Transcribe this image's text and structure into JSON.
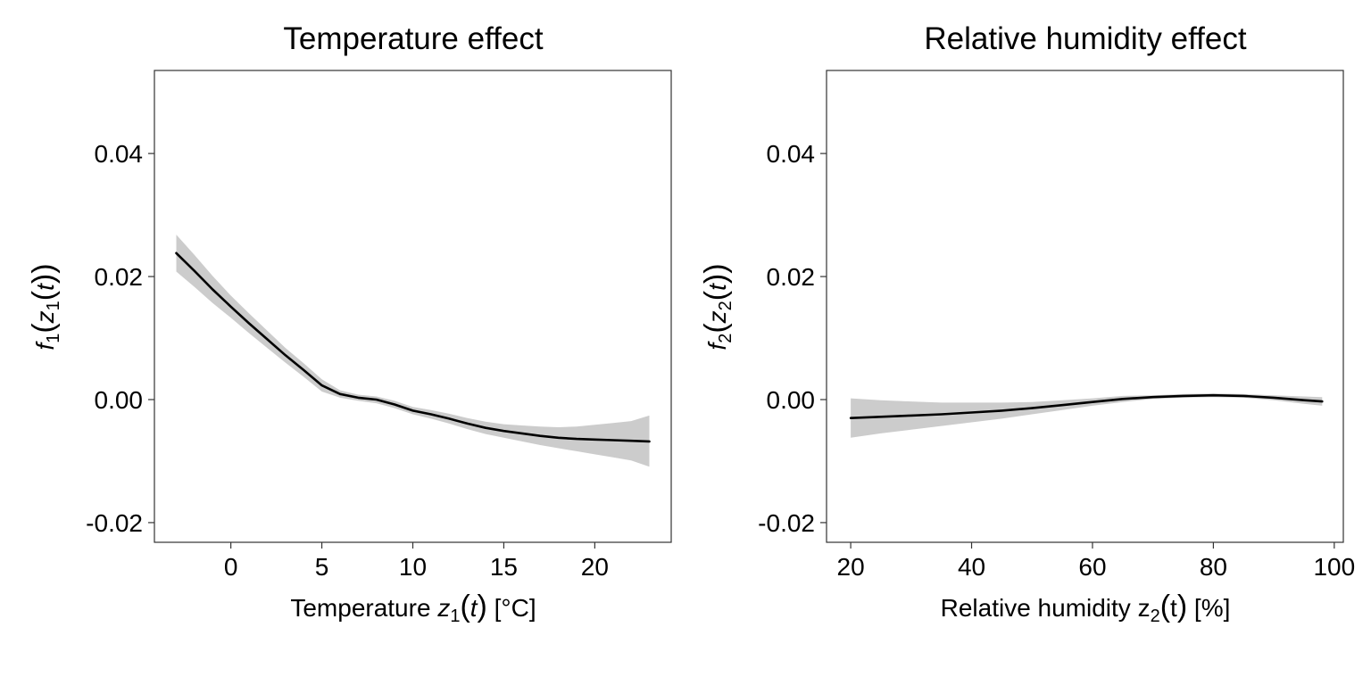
{
  "colors": {
    "background": "#ffffff",
    "panel_border": "#333333",
    "ribbon": "#cccccc",
    "line": "#000000",
    "text": "#000000"
  },
  "panels": [
    {
      "title": "Temperature effect",
      "xlabel": {
        "prefix": "Temperature ",
        "var": "z",
        "sub": "1",
        "arg": "t",
        "unit": " [°C]"
      },
      "ylabel": {
        "fn": "f",
        "fn_sub": "1",
        "var": "z",
        "var_sub": "1",
        "arg": "t"
      }
    },
    {
      "title": "Relative humidity effect",
      "xlabel": {
        "prefix": "Relative humidity ",
        "var": "z",
        "sub": "2",
        "arg": "t",
        "unit": " [%]"
      },
      "ylabel": {
        "fn": "f",
        "fn_sub": "2",
        "var": "z",
        "var_sub": "2",
        "arg": "t"
      }
    }
  ],
  "chart_data": [
    {
      "type": "line",
      "title": "Temperature effect",
      "xlabel": "Temperature z1(t) [°C]",
      "ylabel": "f1(z1(t))",
      "xlim": [
        -4.2,
        24.2
      ],
      "ylim": [
        -0.0232,
        0.0535
      ],
      "xticks": [
        0,
        5,
        10,
        15,
        20
      ],
      "xtick_labels": [
        "0",
        "5",
        "10",
        "15",
        "20"
      ],
      "yticks": [
        -0.02,
        0.0,
        0.02,
        0.04
      ],
      "ytick_labels": [
        "-0.02",
        "0.00",
        "0.02",
        "0.04"
      ],
      "grid": false,
      "series": [
        {
          "x": [
            -3,
            -2,
            -1,
            0,
            1,
            2,
            3,
            4,
            5,
            6,
            7,
            8,
            9,
            10,
            11,
            12,
            13,
            14,
            15,
            16,
            17,
            18,
            19,
            20,
            21,
            22,
            23
          ],
          "y": [
            0.0238,
            0.0209,
            0.0179,
            0.0151,
            0.0124,
            0.0098,
            0.0072,
            0.0048,
            0.0023,
            0.0009,
            0.0003,
            0.0,
            -0.0008,
            -0.0018,
            -0.0024,
            -0.0031,
            -0.0039,
            -0.0046,
            -0.0051,
            -0.0055,
            -0.0059,
            -0.0062,
            -0.0064,
            -0.0065,
            -0.0066,
            -0.0067,
            -0.0068
          ],
          "lower": [
            0.0208,
            0.0183,
            0.0157,
            0.0133,
            0.0108,
            0.0084,
            0.006,
            0.0037,
            0.0013,
            0.0003,
            -0.0002,
            -0.0006,
            -0.0014,
            -0.0024,
            -0.0031,
            -0.0039,
            -0.0048,
            -0.0056,
            -0.0062,
            -0.0068,
            -0.0074,
            -0.0079,
            -0.0084,
            -0.0089,
            -0.0094,
            -0.0099,
            -0.0109
          ],
          "upper": [
            0.0268,
            0.0235,
            0.0201,
            0.0169,
            0.014,
            0.0112,
            0.0084,
            0.0059,
            0.0033,
            0.0015,
            0.0008,
            0.0005,
            -0.0002,
            -0.0012,
            -0.0017,
            -0.0023,
            -0.003,
            -0.0036,
            -0.004,
            -0.0042,
            -0.0044,
            -0.0045,
            -0.0044,
            -0.0041,
            -0.0038,
            -0.0035,
            -0.0026
          ]
        }
      ]
    },
    {
      "type": "line",
      "title": "Relative humidity effect",
      "xlabel": "Relative humidity z2(t) [%]",
      "ylabel": "f2(z2(t))",
      "xlim": [
        16,
        101.5
      ],
      "ylim": [
        -0.0232,
        0.0535
      ],
      "xticks": [
        20,
        40,
        60,
        80,
        100
      ],
      "xtick_labels": [
        "20",
        "40",
        "60",
        "80",
        "100"
      ],
      "yticks": [
        -0.02,
        0.0,
        0.02,
        0.04
      ],
      "ytick_labels": [
        "-0.02",
        "0.00",
        "0.02",
        "0.04"
      ],
      "grid": false,
      "series": [
        {
          "x": [
            20,
            25,
            30,
            35,
            40,
            45,
            50,
            55,
            60,
            65,
            70,
            75,
            80,
            85,
            90,
            95,
            98
          ],
          "y": [
            -0.003,
            -0.0028,
            -0.0026,
            -0.0024,
            -0.0021,
            -0.0018,
            -0.0014,
            -0.0009,
            -0.0004,
            0.0001,
            0.0004,
            0.0006,
            0.0007,
            0.0006,
            0.0003,
            -0.0001,
            -0.0003
          ],
          "lower": [
            -0.0062,
            -0.0055,
            -0.0049,
            -0.0043,
            -0.0037,
            -0.0031,
            -0.0024,
            -0.0017,
            -0.001,
            -0.0004,
            0.0001,
            0.0003,
            0.0004,
            0.0003,
            -0.0001,
            -0.0007,
            -0.001
          ],
          "upper": [
            0.0002,
            -0.0001,
            -0.0003,
            -0.0005,
            -0.0005,
            -0.0005,
            -0.0004,
            -0.0001,
            0.0002,
            0.0006,
            0.0007,
            0.0009,
            0.001,
            0.0009,
            0.0007,
            0.0005,
            0.0004
          ]
        }
      ]
    }
  ]
}
